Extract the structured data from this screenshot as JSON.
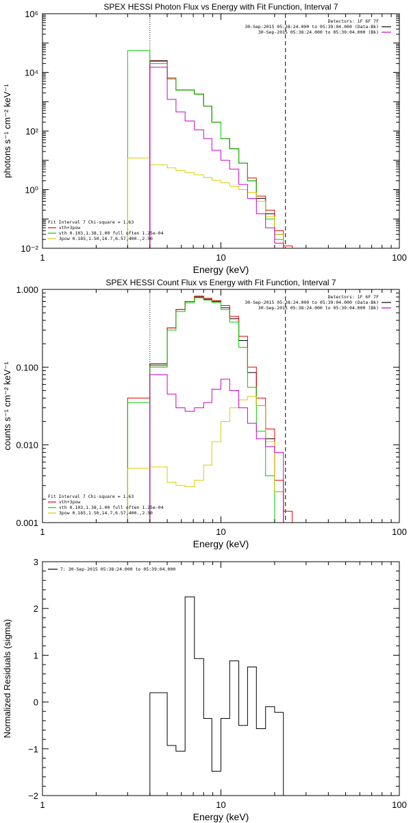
{
  "chart_data": [
    {
      "type": "line",
      "title": "SPEX HESSI Photon Flux vs Energy with Fit Function, Interval 7",
      "xlabel": "Energy (keV)",
      "ylabel": "photons s⁻¹ cm⁻² keV⁻¹",
      "xscale": "log",
      "yscale": "log",
      "xlim": [
        1,
        100
      ],
      "ylim": [
        0.01,
        1000000
      ],
      "x_ticks": [
        {
          "v": 1,
          "label": "1"
        },
        {
          "v": 10,
          "label": "10"
        },
        {
          "v": 100,
          "label": "100"
        }
      ],
      "y_ticks": [
        {
          "v": 0.01,
          "label": "10⁻²"
        },
        {
          "v": 1,
          "label": "10⁰"
        },
        {
          "v": 100,
          "label": "10²"
        },
        {
          "v": 10000,
          "label": "10⁴"
        },
        {
          "v": 1000000,
          "label": "10⁶"
        }
      ],
      "vlines": [
        {
          "x": 4.0,
          "style": "dotted",
          "color": "#000000"
        },
        {
          "x": 23.0,
          "style": "dashed",
          "color": "#000000"
        }
      ],
      "legend_top": {
        "placement": "top-right",
        "lines": [
          {
            "text": "Detectors: 1F 6F 7F",
            "color": null
          },
          {
            "text": "30-Sep-2015 05:38:24.000 to 05:39:04.000 (Data-Bk)",
            "color": "#000000"
          },
          {
            "text": "30-Sep-2015 05:38:24.000 to 05:39:04.000 (Bk)",
            "color": "#cc00cc"
          }
        ]
      },
      "legend_bottom": {
        "placement": "bottom-left",
        "lines": [
          {
            "text": "Fit Interval  7   Chi-square = 1.63",
            "color": null
          },
          {
            "text": "vth+3pow",
            "color": "#ee0000"
          },
          {
            "text": "vth 0.103,1.38,1.00  full often 1.25e-04",
            "color": "#00cc00"
          },
          {
            "text": "3pow 0.185,1.50,14.7,6.57,400.,2.50",
            "color": "#ddcc00"
          }
        ]
      },
      "bin_edges": [
        3.0,
        4.0,
        5.0,
        5.6,
        6.3,
        7.1,
        8.0,
        8.9,
        10.0,
        11.2,
        12.6,
        14.1,
        15.8,
        17.8,
        20.0,
        22.4,
        25.1
      ],
      "series": [
        {
          "name": "Data-Bk",
          "color": "#000000",
          "values": [
            null,
            25000,
            6000,
            2500,
            2500,
            1800,
            700,
            200,
            55,
            25,
            8,
            2,
            0.5,
            0.15,
            0.03,
            null
          ]
        },
        {
          "name": "vth+3pow",
          "color": "#ee0000",
          "values": [
            null,
            24000,
            6000,
            2500,
            2500,
            1800,
            700,
            200,
            55,
            25,
            8,
            2.5,
            0.6,
            0.2,
            0.04,
            0.012
          ]
        },
        {
          "name": "vth",
          "color": "#00cc00",
          "values": [
            55000,
            20000,
            6500,
            2500,
            2500,
            1800,
            700,
            200,
            55,
            25,
            8,
            2,
            0.4,
            0.1,
            0.02,
            null
          ]
        },
        {
          "name": "3pow",
          "color": "#ddcc00",
          "values": [
            12,
            7,
            5.5,
            4.5,
            3.8,
            3.2,
            2.6,
            2.1,
            1.7,
            1.3,
            1.0,
            0.8,
            0.4,
            0.12,
            0.03,
            null
          ]
        },
        {
          "name": "Bk",
          "color": "#cc00cc",
          "values": [
            null,
            15000,
            1200,
            450,
            220,
            110,
            55,
            22,
            10,
            5,
            1.5,
            0.5,
            0.15,
            0.05,
            0.015,
            null
          ]
        }
      ],
      "bk_stems": [
        {
          "x": 4.0,
          "from": 0.01,
          "to": 15000,
          "color": "#cc00cc"
        }
      ]
    },
    {
      "type": "line",
      "title": "SPEX HESSI Count Flux vs Energy with Fit Function, Interval 7",
      "xlabel": "Energy (keV)",
      "ylabel": "counts s⁻¹ cm⁻² keV⁻¹",
      "xscale": "log",
      "yscale": "log",
      "xlim": [
        1,
        100
      ],
      "ylim": [
        0.001,
        1.0
      ],
      "x_ticks": [
        {
          "v": 1,
          "label": "1"
        },
        {
          "v": 10,
          "label": "10"
        },
        {
          "v": 100,
          "label": "100"
        }
      ],
      "y_ticks": [
        {
          "v": 0.001,
          "label": "0.001"
        },
        {
          "v": 0.01,
          "label": "0.010"
        },
        {
          "v": 0.1,
          "label": "0.100"
        },
        {
          "v": 1.0,
          "label": "1.000"
        }
      ],
      "vlines": [
        {
          "x": 4.0,
          "style": "dotted",
          "color": "#000000"
        },
        {
          "x": 23.0,
          "style": "dashed",
          "color": "#000000"
        }
      ],
      "legend_top": {
        "placement": "top-right",
        "lines": [
          {
            "text": "Detectors: 1F 6F 7F",
            "color": null
          },
          {
            "text": "30-Sep-2015 05:38:24.000 to 05:39:04.000 (Data-Bk)",
            "color": "#000000"
          },
          {
            "text": "30-Sep-2015 05:38:24.000 to 05:39:04.000 (Bk)",
            "color": "#cc00cc"
          }
        ]
      },
      "legend_bottom": {
        "placement": "bottom-left",
        "lines": [
          {
            "text": "Fit Interval  7   Chi-square = 1.63",
            "color": null
          },
          {
            "text": "vth+3pow",
            "color": "#ee0000"
          },
          {
            "text": "vth 0.103,1.38,1.00  full often 1.25e-04",
            "color": "#00cc00"
          },
          {
            "text": "3pow 0.185,1.50,14.7,6.57,400.,2.50",
            "color": "#ddcc00"
          }
        ]
      },
      "bin_edges": [
        3.0,
        4.0,
        5.0,
        5.6,
        6.3,
        7.1,
        8.0,
        8.9,
        10.0,
        11.2,
        12.6,
        14.1,
        15.8,
        17.8,
        20.0,
        22.4,
        25.1
      ],
      "series": [
        {
          "name": "Data-Bk",
          "color": "#000000",
          "values": [
            null,
            0.11,
            0.32,
            0.55,
            0.7,
            0.8,
            0.75,
            0.7,
            0.58,
            0.42,
            0.22,
            0.085,
            0.032,
            0.012,
            0.0025,
            null
          ]
        },
        {
          "name": "vth+3pow",
          "color": "#ee0000",
          "values": [
            0.04,
            0.105,
            0.32,
            0.55,
            0.7,
            0.82,
            0.77,
            0.72,
            0.62,
            0.45,
            0.25,
            0.1,
            0.04,
            0.016,
            0.0035,
            0.0014
          ]
        },
        {
          "name": "vth",
          "color": "#00cc00",
          "values": [
            0.035,
            0.1,
            0.3,
            0.52,
            0.67,
            0.78,
            0.73,
            0.68,
            0.55,
            0.38,
            0.18,
            0.055,
            0.015,
            0.004,
            0.001,
            null
          ]
        },
        {
          "name": "3pow",
          "color": "#ddcc00",
          "values": [
            0.005,
            0.0052,
            0.0033,
            0.003,
            0.0029,
            0.0035,
            0.0055,
            0.011,
            0.02,
            0.03,
            0.038,
            0.042,
            0.032,
            0.011,
            0.0025,
            0.001
          ]
        },
        {
          "name": "Bk",
          "color": "#cc00cc",
          "values": [
            null,
            0.08,
            0.045,
            0.03,
            0.027,
            0.03,
            0.035,
            0.052,
            0.07,
            0.05,
            0.03,
            0.019,
            0.012,
            0.0095,
            0.008,
            null
          ]
        }
      ]
    },
    {
      "type": "line",
      "title": "",
      "xlabel": "Energy (keV)",
      "ylabel": "Normalized Residuals (sigma)",
      "xscale": "log",
      "yscale": "linear",
      "xlim": [
        1,
        100
      ],
      "ylim": [
        -2.0,
        3.0
      ],
      "x_ticks": [
        {
          "v": 1,
          "label": "1"
        },
        {
          "v": 10,
          "label": "10"
        },
        {
          "v": 100,
          "label": "100"
        }
      ],
      "y_ticks": [
        {
          "v": -2,
          "label": "−2"
        },
        {
          "v": -1,
          "label": "−1"
        },
        {
          "v": 0,
          "label": "0"
        },
        {
          "v": 1,
          "label": "1"
        },
        {
          "v": 2,
          "label": "2"
        },
        {
          "v": 3,
          "label": "3"
        }
      ],
      "legend_top": {
        "placement": "top-left",
        "lines": [
          {
            "text": "7: 30-Sep-2015 05:38:24.000 to 05:39:04.000",
            "color": "#000000"
          }
        ]
      },
      "bin_edges": [
        4.0,
        5.0,
        5.6,
        6.3,
        7.1,
        8.0,
        8.9,
        10.0,
        11.2,
        12.6,
        14.1,
        15.8,
        17.8,
        20.0,
        22.4
      ],
      "series": [
        {
          "name": "7: 30-Sep-2015 05:38:24.000 to 05:39:04.000",
          "color": "#000000",
          "values": [
            0.2,
            -0.93,
            -1.05,
            2.25,
            0.93,
            -0.35,
            -1.48,
            -0.35,
            0.88,
            -0.5,
            0.75,
            -0.57,
            -0.1,
            -0.22
          ]
        }
      ]
    }
  ]
}
